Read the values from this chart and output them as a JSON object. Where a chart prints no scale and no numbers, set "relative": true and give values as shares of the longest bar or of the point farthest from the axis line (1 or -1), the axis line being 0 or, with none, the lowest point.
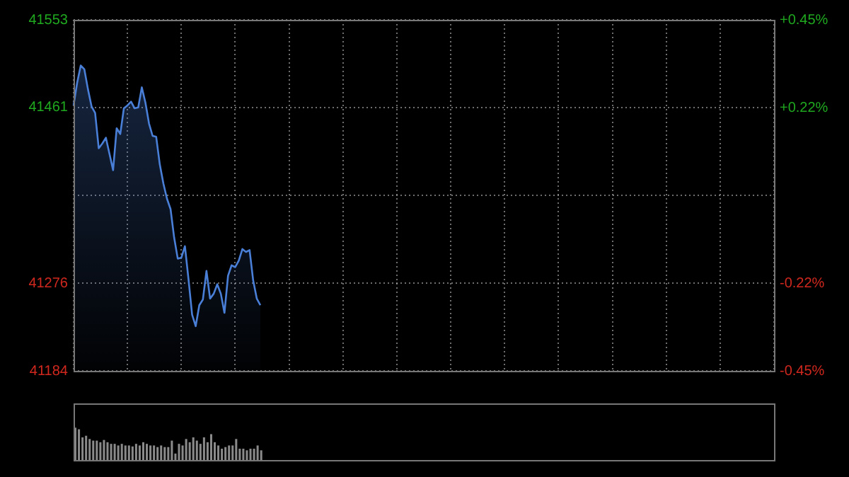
{
  "chart_data": [
    {
      "type": "area",
      "categories": [
        null,
        null,
        null,
        null,
        null,
        null,
        null,
        null,
        null,
        null,
        null,
        null,
        null,
        null,
        null,
        null,
        null,
        null,
        null,
        null,
        null,
        null,
        null,
        null,
        null,
        null,
        null,
        null,
        null,
        null,
        null,
        null,
        null,
        null,
        null,
        null,
        null,
        null,
        null,
        null,
        null,
        null,
        null,
        null,
        null,
        null,
        null,
        null,
        null,
        null,
        null,
        null,
        null,
        null,
        null,
        null,
        null,
        null,
        null,
        null,
        null,
        null,
        null,
        null,
        null,
        null,
        null,
        null,
        null,
        null,
        null,
        null,
        null,
        null,
        null,
        null,
        null,
        null,
        null,
        null,
        null,
        null,
        null,
        null,
        null,
        null,
        null,
        null,
        null,
        null,
        null,
        null,
        null,
        null,
        null,
        null,
        null,
        null,
        null,
        null,
        null,
        null,
        null,
        null,
        null,
        null,
        null,
        null,
        null,
        null,
        null,
        null,
        null,
        null,
        null,
        null,
        null,
        null,
        null,
        null,
        null,
        null,
        null,
        null,
        null,
        null,
        null,
        null,
        null,
        null,
        null,
        null,
        null,
        null,
        null,
        null,
        null,
        null,
        null,
        null,
        null,
        null,
        null,
        null,
        null,
        null,
        null,
        null,
        null,
        null,
        null,
        null,
        null,
        null,
        null,
        null,
        null,
        null,
        null,
        null,
        null,
        null,
        null,
        null,
        null,
        null,
        null,
        null,
        null,
        null,
        null,
        null,
        null,
        null,
        null,
        null,
        null,
        null,
        null,
        null,
        null,
        null,
        null,
        null,
        null,
        null,
        null,
        null,
        null,
        null,
        null,
        null,
        null,
        null,
        null,
        null
      ],
      "series": [
        {
          "color": "#4a7fd8",
          "values": [
            41463,
            41487,
            41505,
            41501,
            41480,
            41462,
            41455,
            41418,
            41423,
            41429,
            41412,
            41395,
            41439,
            41433,
            41460,
            41463,
            41467,
            41460,
            41461,
            41482,
            41466,
            41444,
            41431,
            41430,
            41401,
            41381,
            41365,
            41354,
            41324,
            41302,
            41303,
            41315,
            41280,
            41243,
            41231,
            41253,
            41259,
            41289,
            41260,
            41265,
            41275,
            41265,
            41245,
            41284,
            41295,
            41293,
            41300,
            41312,
            41309,
            41311,
            41279,
            41260,
            41253,
            null,
            null,
            null,
            null,
            null,
            null,
            null,
            null,
            null,
            null,
            null,
            null,
            null,
            null,
            null,
            null,
            null,
            null,
            null,
            null,
            null,
            null,
            null,
            null,
            null,
            null,
            null,
            null,
            null,
            null,
            null,
            null,
            null,
            null,
            null,
            null,
            null,
            null,
            null,
            null,
            null,
            null,
            null,
            null,
            null,
            null,
            null,
            null,
            null,
            null,
            null,
            null,
            null,
            null,
            null,
            null,
            null,
            null,
            null,
            null,
            null,
            null,
            null,
            null,
            null,
            null,
            null,
            null,
            null,
            null,
            null,
            null,
            null,
            null,
            null,
            null,
            null,
            null,
            null,
            null,
            null,
            null,
            null,
            null,
            null,
            null,
            null,
            null,
            null,
            null,
            null,
            null,
            null,
            null,
            null,
            null,
            null,
            null,
            null,
            null,
            null,
            null,
            null,
            null,
            null,
            null,
            null,
            null,
            null,
            null,
            null,
            null,
            null,
            null,
            null,
            null,
            null,
            null,
            null,
            null,
            null,
            null,
            null,
            null,
            null,
            null,
            null,
            null,
            null,
            null,
            null,
            null,
            null,
            null,
            null,
            null,
            null,
            null,
            null,
            null,
            null,
            null,
            null
          ]
        }
      ],
      "ylim": [
        41184,
        41553
      ],
      "yticks": [
        41184,
        41276,
        {
          "value": 41368.5,
          "label": null
        },
        41461,
        41553
      ],
      "y2lim": [
        -0.45,
        0.45
      ],
      "y2ticks": [
        {
          "value": -0.45,
          "label": "-0.45%"
        },
        {
          "value": -0.225,
          "label": "-0.22%"
        },
        {
          "value": 0,
          "label": null
        },
        {
          "value": 0.225,
          "label": "+0.22%"
        },
        {
          "value": 0.45,
          "label": "+0.45%"
        }
      ],
      "tick_labels": "y",
      "grid": true,
      "legend": false
    },
    {
      "type": "bar",
      "relative": true,
      "legend": false,
      "tick_labels": false,
      "categories": [
        null,
        null,
        null,
        null,
        null,
        null,
        null,
        null,
        null,
        null,
        null,
        null,
        null,
        null,
        null,
        null,
        null,
        null,
        null,
        null,
        null,
        null,
        null,
        null,
        null,
        null,
        null,
        null,
        null,
        null,
        null,
        null,
        null,
        null,
        null,
        null,
        null,
        null,
        null,
        null,
        null,
        null,
        null,
        null,
        null,
        null,
        null,
        null,
        null,
        null,
        null,
        null,
        null,
        null,
        null,
        null,
        null,
        null,
        null,
        null,
        null,
        null,
        null,
        null,
        null,
        null,
        null,
        null,
        null,
        null,
        null,
        null,
        null,
        null,
        null,
        null,
        null,
        null,
        null,
        null,
        null,
        null,
        null,
        null,
        null,
        null,
        null,
        null,
        null,
        null,
        null,
        null,
        null,
        null,
        null,
        null,
        null,
        null,
        null,
        null,
        null,
        null,
        null,
        null,
        null,
        null,
        null,
        null,
        null,
        null,
        null,
        null,
        null,
        null,
        null,
        null,
        null,
        null,
        null,
        null,
        null,
        null,
        null,
        null,
        null,
        null,
        null,
        null,
        null,
        null,
        null,
        null,
        null,
        null,
        null,
        null,
        null,
        null,
        null,
        null,
        null,
        null,
        null,
        null,
        null,
        null,
        null,
        null,
        null,
        null,
        null,
        null,
        null,
        null,
        null,
        null,
        null,
        null,
        null,
        null,
        null,
        null,
        null,
        null,
        null,
        null,
        null,
        null,
        null,
        null,
        null,
        null,
        null,
        null,
        null,
        null,
        null,
        null,
        null,
        null,
        null,
        null,
        null,
        null,
        null,
        null,
        null,
        null,
        null,
        null,
        null,
        null,
        null,
        null,
        null,
        null
      ],
      "color": "#8a8a8a",
      "values": [
        1.0,
        0.95,
        0.7,
        0.75,
        0.65,
        0.6,
        0.6,
        0.55,
        0.62,
        0.55,
        0.5,
        0.5,
        0.45,
        0.5,
        0.45,
        0.45,
        0.42,
        0.5,
        0.45,
        0.55,
        0.5,
        0.45,
        0.45,
        0.4,
        0.45,
        0.4,
        0.4,
        0.6,
        0.2,
        0.5,
        0.45,
        0.65,
        0.55,
        0.7,
        0.6,
        0.5,
        0.7,
        0.55,
        0.8,
        0.55,
        0.45,
        0.35,
        0.4,
        0.45,
        0.45,
        0.65,
        0.35,
        0.35,
        0.3,
        0.35,
        0.35,
        0.45,
        0.3,
        null,
        null,
        null,
        null,
        null,
        null,
        null,
        null,
        null,
        null,
        null,
        null,
        null,
        null,
        null,
        null,
        null,
        null,
        null,
        null,
        null,
        null,
        null,
        null,
        null,
        null,
        null,
        null,
        null,
        null,
        null,
        null,
        null,
        null,
        null,
        null,
        null,
        null,
        null,
        null,
        null,
        null,
        null,
        null,
        null,
        null,
        null,
        null,
        null,
        null,
        null,
        null,
        null,
        null,
        null,
        null,
        null,
        null,
        null,
        null,
        null,
        null,
        null,
        null,
        null,
        null,
        null,
        null,
        null,
        null,
        null,
        null,
        null,
        null,
        null,
        null,
        null,
        null,
        null,
        null,
        null,
        null,
        null,
        null,
        null,
        null,
        null,
        null,
        null,
        null,
        null,
        null,
        null,
        null,
        null,
        null,
        null,
        null,
        null,
        null,
        null,
        null,
        null,
        null,
        null,
        null,
        null,
        null,
        null,
        null,
        null,
        null,
        null,
        null,
        null,
        null,
        null,
        null,
        null,
        null,
        null,
        null,
        null,
        null,
        null,
        null,
        null,
        null,
        null,
        null,
        null,
        null,
        null,
        null,
        null,
        null,
        null,
        null,
        null,
        null,
        null,
        null,
        null
      ]
    }
  ]
}
